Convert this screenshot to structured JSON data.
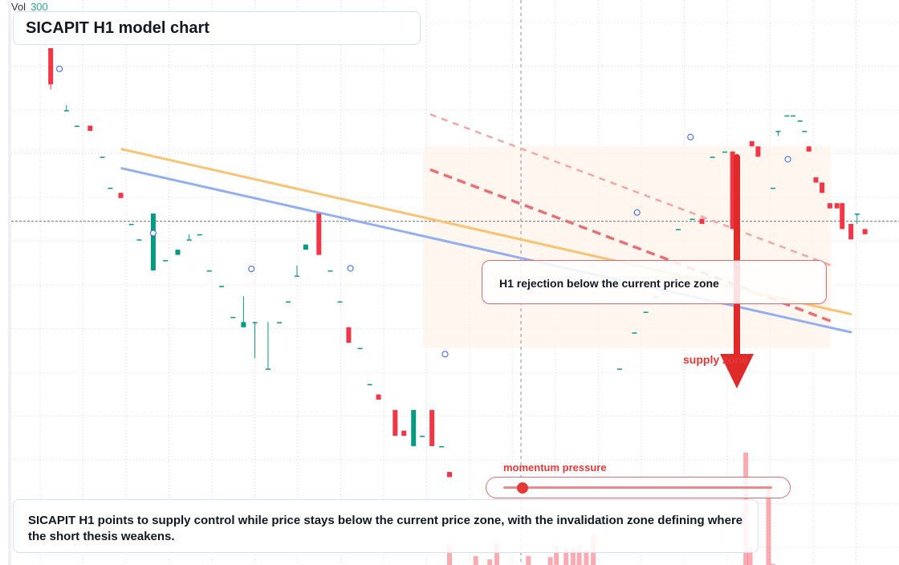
{
  "header": {
    "vol_label": "Vol",
    "vol_value": "300"
  },
  "title": "SICAPIT H1 model chart",
  "callout_text": "H1 rejection below the current price zone",
  "zone_label": "supply zone",
  "momentum": {
    "label": "momentum pressure",
    "level": 0.07
  },
  "summary": "SICAPIT H1 points to supply control while price stays below the current price zone, with the invalidation zone defining where the short thesis weakens.",
  "colors": {
    "up": "#089981",
    "down": "#f23645",
    "ma_fast": "#f8c373",
    "ma_slow": "#94aff0",
    "bear": "#e53935",
    "zone": "#fdf3ea"
  },
  "chart_data": {
    "type": "candlestick",
    "title": "SICAPIT H1 model chart",
    "xlabel": "",
    "ylabel": "",
    "ylim": [
      0,
      100
    ],
    "x_range": [
      0,
      100
    ],
    "grid": true,
    "current_price": 66.5,
    "candles": [
      [
        4.5,
        100,
        100,
        92,
        93
      ],
      [
        6.3,
        88,
        89,
        88,
        88
      ],
      [
        7.5,
        85,
        85,
        85,
        85
      ],
      [
        9.0,
        85,
        85,
        84,
        84
      ],
      [
        10.4,
        79,
        79,
        79,
        79
      ],
      [
        11.3,
        73,
        73,
        73,
        73
      ],
      [
        12.5,
        72,
        72,
        71,
        71
      ],
      [
        13.7,
        66,
        66,
        66,
        66
      ],
      [
        14.6,
        63,
        63,
        63,
        63
      ],
      [
        16.2,
        57,
        68,
        57,
        68
      ],
      [
        17.6,
        59,
        59,
        59,
        59
      ],
      [
        19.0,
        60,
        61,
        60,
        61
      ],
      [
        20.3,
        63,
        64,
        63,
        63
      ],
      [
        21.5,
        64,
        64,
        64,
        64
      ],
      [
        22.6,
        57,
        57,
        57,
        57
      ],
      [
        24.0,
        54,
        54,
        54,
        54
      ],
      [
        25.3,
        48,
        48,
        48,
        48
      ],
      [
        26.5,
        46,
        52,
        46,
        47
      ],
      [
        27.8,
        47,
        47,
        40,
        47
      ],
      [
        29.3,
        38,
        47,
        38,
        38
      ],
      [
        30.6,
        47,
        47,
        47,
        47
      ],
      [
        31.6,
        51,
        51,
        51,
        51
      ],
      [
        32.6,
        56,
        58,
        56,
        56
      ],
      [
        33.6,
        61,
        62,
        61,
        62
      ],
      [
        35.1,
        68,
        68,
        60,
        60
      ],
      [
        36.4,
        57,
        57,
        57,
        57
      ],
      [
        37.5,
        51,
        51,
        51,
        51
      ],
      [
        38.5,
        46,
        46,
        43,
        43
      ],
      [
        39.8,
        42,
        42,
        42,
        42
      ],
      [
        40.9,
        35,
        35,
        35,
        35
      ],
      [
        41.9,
        33,
        33,
        32,
        32
      ],
      [
        43.8,
        30,
        29,
        25,
        25
      ],
      [
        44.8,
        26,
        26,
        25,
        25
      ],
      [
        45.9,
        23,
        30,
        23,
        30
      ],
      [
        46.9,
        25,
        25,
        25,
        25
      ],
      [
        48.0,
        30,
        30,
        23,
        23
      ],
      [
        49.1,
        23,
        23,
        23,
        23
      ],
      [
        50.0,
        18,
        17,
        17,
        17
      ],
      [
        69.4,
        38,
        38,
        38,
        38
      ],
      [
        71.1,
        45,
        45,
        45,
        45
      ],
      [
        72.4,
        49,
        49,
        49,
        49
      ],
      [
        73.6,
        52,
        52,
        52,
        52
      ],
      [
        74.9,
        59,
        59,
        59,
        59
      ],
      [
        76.1,
        65,
        65,
        65,
        65
      ],
      [
        77.7,
        67,
        67,
        67,
        67
      ],
      [
        78.8,
        67,
        67,
        66,
        66
      ],
      [
        80.0,
        79,
        79,
        79,
        79
      ],
      [
        81.4,
        80,
        80,
        80,
        80
      ],
      [
        82.3,
        80,
        80,
        65,
        65
      ],
      [
        84.5,
        82,
        82,
        81,
        81
      ],
      [
        85.2,
        81,
        81,
        79,
        79
      ],
      [
        86.9,
        73,
        73,
        73,
        73
      ],
      [
        87.5,
        84,
        84,
        83,
        84
      ],
      [
        88.5,
        87,
        87,
        87,
        87
      ],
      [
        89.2,
        87,
        87,
        87,
        87
      ],
      [
        90.0,
        86,
        86,
        86,
        86
      ],
      [
        90.5,
        84,
        84,
        84,
        84
      ],
      [
        91.0,
        81,
        80,
        81,
        80
      ],
      [
        91.8,
        75,
        75,
        74,
        74
      ],
      [
        92.5,
        74,
        74,
        72,
        72
      ],
      [
        93.4,
        70,
        70,
        69,
        69
      ],
      [
        94.2,
        70,
        70,
        69,
        69
      ],
      [
        94.8,
        70,
        70,
        65,
        65
      ],
      [
        95.8,
        66,
        66,
        63,
        63
      ],
      [
        96.5,
        68,
        68,
        66,
        68
      ],
      [
        97.4,
        65,
        65,
        64,
        64
      ]
    ],
    "ma_fast": [
      [
        12.5,
        80.5
      ],
      [
        95.9,
        48.5
      ]
    ],
    "ma_slow": [
      [
        12.5,
        76.8
      ],
      [
        95.9,
        45.0
      ]
    ],
    "channel_upper": [
      [
        47.8,
        87.2
      ],
      [
        93.8,
        57.8
      ]
    ],
    "channel_lower": [
      [
        47.8,
        76.5
      ],
      [
        93.8,
        47.0
      ]
    ],
    "supply_zone": [
      47,
      93.5,
      42,
      81
    ],
    "volume": [
      [
        50.0,
        18
      ],
      [
        53.0,
        8
      ],
      [
        54.6,
        5
      ],
      [
        55.4,
        19
      ],
      [
        59.0,
        8
      ],
      [
        61.5,
        7
      ],
      [
        62.2,
        17
      ],
      [
        63.3,
        15
      ],
      [
        64.1,
        15
      ],
      [
        64.8,
        17
      ],
      [
        65.6,
        14
      ],
      [
        66.4,
        28
      ],
      [
        83.8,
        100
      ],
      [
        84.3,
        15
      ],
      [
        86.4,
        73
      ],
      [
        86.9,
        1
      ]
    ]
  }
}
